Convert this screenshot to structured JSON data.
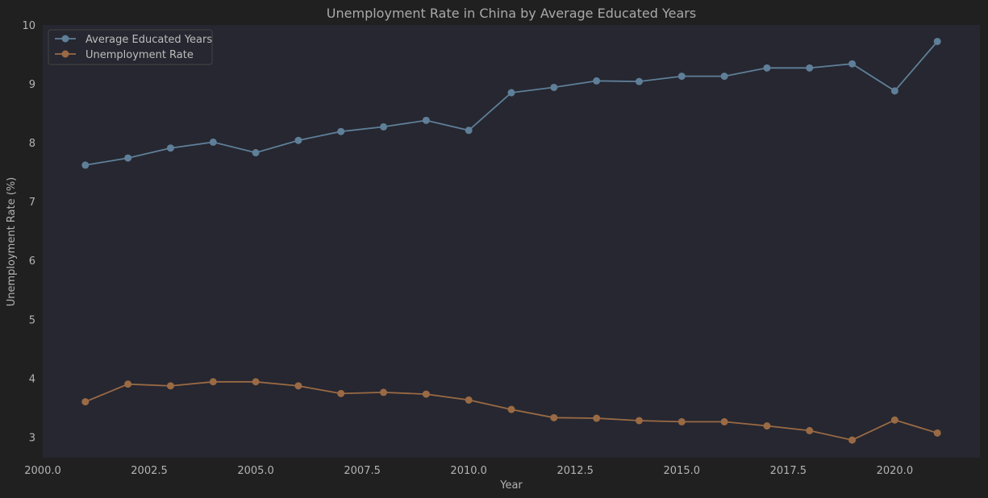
{
  "chart_data": {
    "type": "line",
    "title": "Unemployment Rate in China by Average Educated Years",
    "xlabel": "Year",
    "ylabel": "Unemployment Rate (%)",
    "xlim": [
      2000.0,
      2022.0
    ],
    "ylim": [
      2.65,
      10.0
    ],
    "xticks": [
      "2000.0",
      "2002.5",
      "2005.0",
      "2007.5",
      "2010.0",
      "2012.5",
      "2015.0",
      "2017.5",
      "2020.0"
    ],
    "yticks": [
      "3",
      "4",
      "5",
      "6",
      "7",
      "8",
      "9",
      "10"
    ],
    "grid": false,
    "legend_position": "top-left",
    "colors": {
      "figure_bg": "#202020",
      "plot_bg": "#262730",
      "text": "#b3b3b3"
    },
    "x": [
      2001,
      2002,
      2003,
      2004,
      2005,
      2006,
      2007,
      2008,
      2009,
      2010,
      2011,
      2012,
      2013,
      2014,
      2015,
      2016,
      2017,
      2018,
      2019,
      2020,
      2021
    ],
    "series": [
      {
        "name": "Average Educated Years",
        "color": "#5f7f99",
        "values": [
          7.62,
          7.74,
          7.91,
          8.01,
          7.83,
          8.04,
          8.19,
          8.27,
          8.38,
          8.21,
          8.85,
          8.94,
          9.05,
          9.04,
          9.13,
          9.13,
          9.27,
          9.27,
          9.34,
          8.88,
          9.72
        ]
      },
      {
        "name": "Unemployment Rate",
        "color": "#9a6a45",
        "values": [
          3.6,
          3.9,
          3.87,
          3.94,
          3.94,
          3.87,
          3.74,
          3.76,
          3.73,
          3.63,
          3.47,
          3.33,
          3.32,
          3.28,
          3.26,
          3.26,
          3.19,
          3.11,
          2.95,
          3.29,
          3.07
        ]
      }
    ]
  }
}
